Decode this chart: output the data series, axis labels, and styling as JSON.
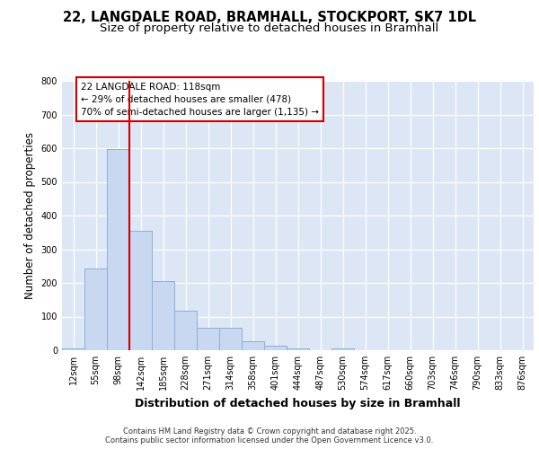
{
  "title_line1": "22, LANGDALE ROAD, BRAMHALL, STOCKPORT, SK7 1DL",
  "title_line2": "Size of property relative to detached houses in Bramhall",
  "xlabel": "Distribution of detached houses by size in Bramhall",
  "ylabel": "Number of detached properties",
  "bins": [
    "12sqm",
    "55sqm",
    "98sqm",
    "142sqm",
    "185sqm",
    "228sqm",
    "271sqm",
    "314sqm",
    "358sqm",
    "401sqm",
    "444sqm",
    "487sqm",
    "530sqm",
    "574sqm",
    "617sqm",
    "660sqm",
    "703sqm",
    "746sqm",
    "790sqm",
    "833sqm",
    "876sqm"
  ],
  "values": [
    5,
    242,
    598,
    355,
    205,
    117,
    68,
    68,
    28,
    13,
    5,
    0,
    5,
    0,
    0,
    0,
    0,
    0,
    0,
    0,
    0
  ],
  "bar_color": "#c8d8f0",
  "bar_edge_color": "#8ab0d8",
  "vline_color": "#cc0000",
  "vline_x": 2.5,
  "annotation_text": "22 LANGDALE ROAD: 118sqm\n← 29% of detached houses are smaller (478)\n70% of semi-detached houses are larger (1,135) →",
  "annotation_box_facecolor": "#ffffff",
  "annotation_box_edgecolor": "#cc0000",
  "ylim": [
    0,
    800
  ],
  "yticks": [
    0,
    100,
    200,
    300,
    400,
    500,
    600,
    700,
    800
  ],
  "background_color": "#dce6f5",
  "footer": "Contains HM Land Registry data © Crown copyright and database right 2025.\nContains public sector information licensed under the Open Government Licence v3.0.",
  "title_fontsize": 10.5,
  "subtitle_fontsize": 9.5,
  "tick_fontsize": 7,
  "ylabel_fontsize": 8.5,
  "xlabel_fontsize": 9,
  "annotation_fontsize": 7.5,
  "footer_fontsize": 6
}
